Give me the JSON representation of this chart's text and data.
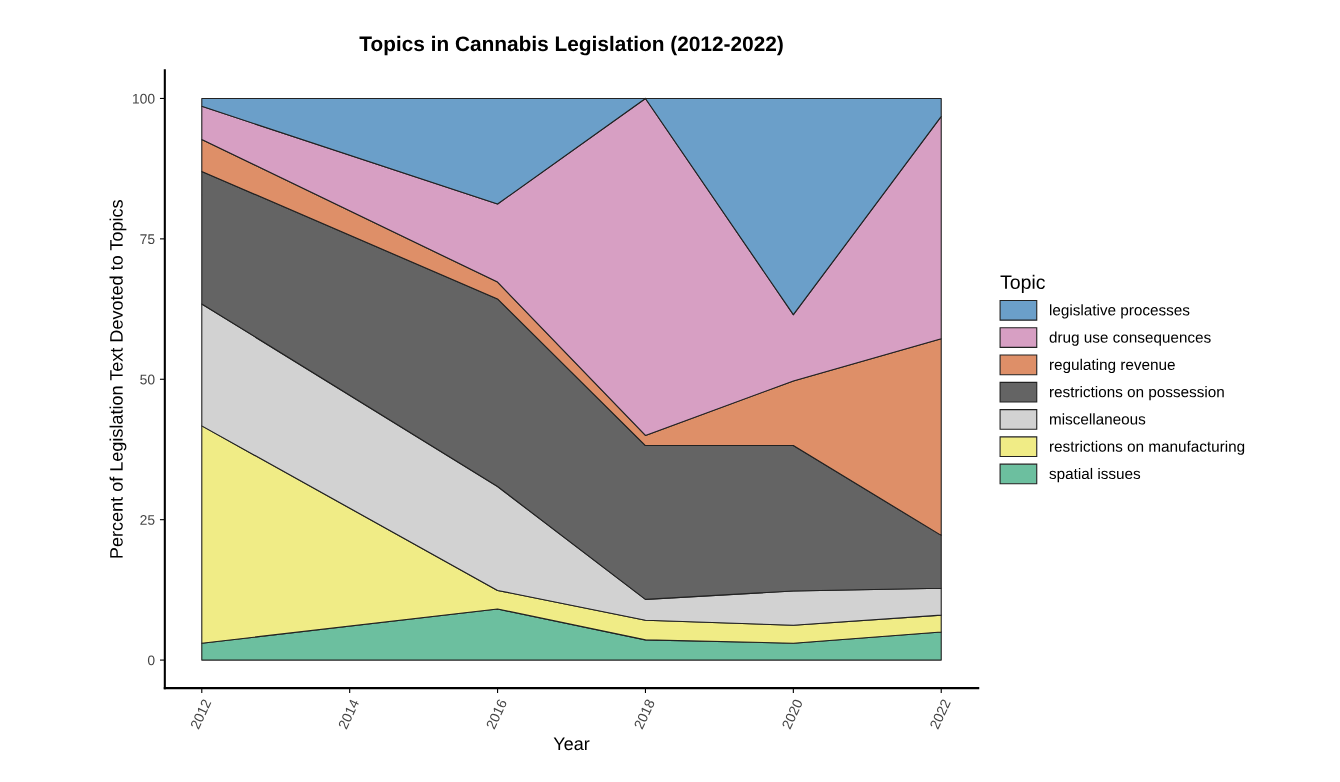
{
  "chart_data": {
    "type": "area",
    "stacked": true,
    "title": "Topics in Cannabis Legislation (2012-2022)",
    "xlabel": "Year",
    "ylabel": "Percent of Legislation Text Devoted to Topics",
    "legend_title": "Topic",
    "legend": "right",
    "grid": false,
    "x": [
      2012,
      2016,
      2018,
      2020,
      2022
    ],
    "xlim": [
      2011.5,
      2022.5
    ],
    "xticks": [
      2012,
      2014,
      2016,
      2018,
      2020,
      2022
    ],
    "ylim": [
      -5,
      105
    ],
    "yticks": [
      0,
      25,
      50,
      75,
      100
    ],
    "series": [
      {
        "name": "spatial issues",
        "color": "#6cbf9f",
        "values": [
          3.0,
          9.1,
          3.6,
          3.0,
          5.0
        ]
      },
      {
        "name": "restrictions on manufacturing",
        "color": "#f0ec86",
        "values": [
          38.7,
          3.3,
          3.5,
          3.2,
          3.0
        ]
      },
      {
        "name": "miscellaneous",
        "color": "#d2d2d2",
        "values": [
          21.7,
          18.5,
          3.7,
          6.1,
          4.8
        ]
      },
      {
        "name": "restrictions on possession",
        "color": "#646464",
        "values": [
          23.6,
          33.4,
          27.4,
          25.9,
          9.4
        ]
      },
      {
        "name": "regulating revenue",
        "color": "#de8f68",
        "values": [
          5.7,
          3.0,
          1.8,
          11.5,
          35.0
        ]
      },
      {
        "name": "drug use consequences",
        "color": "#d79fc3",
        "values": [
          5.9,
          13.9,
          60.0,
          11.8,
          39.6
        ]
      },
      {
        "name": "legislative processes",
        "color": "#6b9fc9",
        "values": [
          1.4,
          18.8,
          0.0,
          38.5,
          3.2
        ]
      }
    ]
  }
}
